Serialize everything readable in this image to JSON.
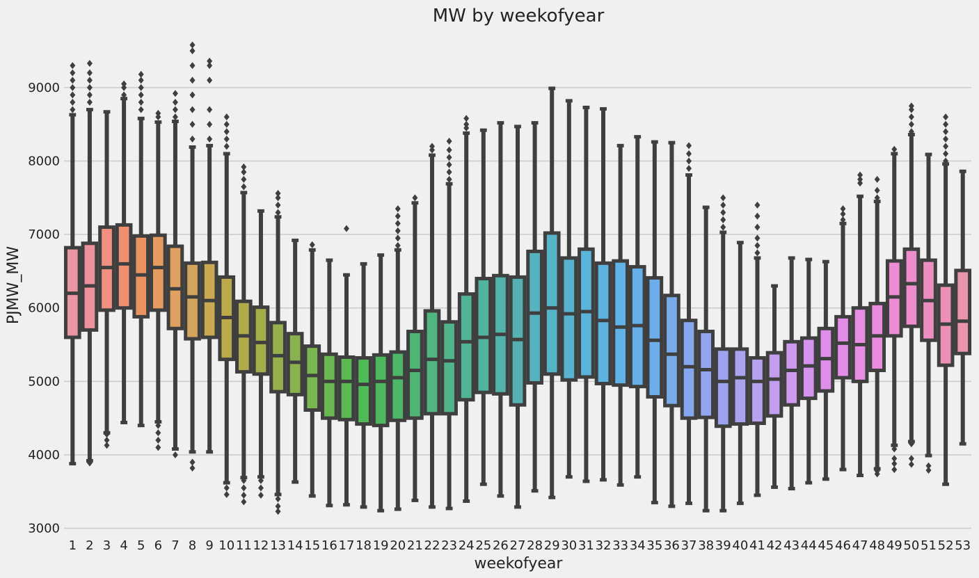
{
  "chart_data": {
    "type": "box",
    "title": "MW by weekofyear",
    "xlabel": "weekofyear",
    "ylabel": "PJMW_MW",
    "ylim": [
      2920,
      9700
    ],
    "yticks": [
      3000,
      4000,
      5000,
      6000,
      7000,
      8000,
      9000
    ],
    "grid": true,
    "categories": [
      "1",
      "2",
      "3",
      "4",
      "5",
      "6",
      "7",
      "8",
      "9",
      "10",
      "11",
      "12",
      "13",
      "14",
      "15",
      "16",
      "17",
      "18",
      "19",
      "20",
      "21",
      "22",
      "23",
      "24",
      "25",
      "26",
      "27",
      "28",
      "29",
      "30",
      "31",
      "32",
      "33",
      "34",
      "35",
      "36",
      "37",
      "38",
      "39",
      "40",
      "41",
      "42",
      "43",
      "44",
      "45",
      "46",
      "47",
      "48",
      "49",
      "50",
      "51",
      "52",
      "53"
    ],
    "colors": [
      "#ea96a3",
      "#ed929d",
      "#f09080",
      "#f08f72",
      "#ea9361",
      "#e59a5e",
      "#e0a05f",
      "#d3a55c",
      "#c9a951",
      "#bca94a",
      "#b0ab4b",
      "#a3ad4a",
      "#97b04d",
      "#89b24e",
      "#7cb64f",
      "#6ab84f",
      "#5ab950",
      "#4ebb56",
      "#4cb95f",
      "#4db769",
      "#4fb574",
      "#50b57f",
      "#52b48b",
      "#52b497",
      "#51b3a0",
      "#52b3aa",
      "#54b2b3",
      "#55b3be",
      "#57b3c7",
      "#58b3d0",
      "#5ab4d9",
      "#5db3e0",
      "#61b2e6",
      "#66b0e9",
      "#6dadeb",
      "#78aaec",
      "#85a7ee",
      "#92a5ef",
      "#9ea3ef",
      "#aca3ee",
      "#b8a1ee",
      "#c39eee",
      "#cd99ee",
      "#d494ed",
      "#dd8fe9",
      "#e28de6",
      "#e78de2",
      "#ea8cdc",
      "#ec8cd4",
      "#ed8dcb",
      "#ed8ec1",
      "#ec90b6",
      "#ea94ac"
    ],
    "boxes": [
      {
        "q1": 5600,
        "median": 6200,
        "q3": 6820,
        "whislo": 3880,
        "whishi": 8630,
        "outliers": [
          8700,
          8800,
          8900,
          9000,
          9100,
          9200,
          9300
        ]
      },
      {
        "q1": 5700,
        "median": 6300,
        "q3": 6880,
        "whislo": 3920,
        "whishi": 8700,
        "outliers": [
          3890,
          8800,
          8900,
          9000,
          9100,
          9200,
          9330
        ]
      },
      {
        "q1": 5970,
        "median": 6550,
        "q3": 7100,
        "whislo": 4300,
        "whishi": 8670,
        "outliers": [
          4130,
          4200,
          4280
        ]
      },
      {
        "q1": 6000,
        "median": 6600,
        "q3": 7130,
        "whislo": 4440,
        "whishi": 8850,
        "outliers": [
          8900,
          9000,
          9050
        ]
      },
      {
        "q1": 5880,
        "median": 6450,
        "q3": 6980,
        "whislo": 4400,
        "whishi": 8580,
        "outliers": [
          8700,
          8800,
          8900,
          9000,
          9100,
          9180
        ]
      },
      {
        "q1": 5970,
        "median": 6550,
        "q3": 6990,
        "whislo": 4450,
        "whishi": 8530,
        "outliers": [
          4100,
          4200,
          4300,
          4400,
          8600,
          8650
        ]
      },
      {
        "q1": 5720,
        "median": 6260,
        "q3": 6840,
        "whislo": 4080,
        "whishi": 8540,
        "outliers": [
          4000,
          8600,
          8700,
          8800,
          8920
        ]
      },
      {
        "q1": 5580,
        "median": 6150,
        "q3": 6610,
        "whislo": 4040,
        "whishi": 8190,
        "outliers": [
          3820,
          3900,
          8300,
          8500,
          8700,
          8900,
          9100,
          9300,
          9500,
          9580
        ]
      },
      {
        "q1": 5600,
        "median": 6100,
        "q3": 6620,
        "whislo": 4040,
        "whishi": 8210,
        "outliers": [
          8300,
          8500,
          8700,
          9100,
          9300,
          9360
        ]
      },
      {
        "q1": 5300,
        "median": 5870,
        "q3": 6420,
        "whislo": 3620,
        "whishi": 8100,
        "outliers": [
          3460,
          3550,
          8200,
          8300,
          8400,
          8500,
          8600
        ]
      },
      {
        "q1": 5130,
        "median": 5620,
        "q3": 6090,
        "whislo": 3690,
        "whishi": 7570,
        "outliers": [
          3360,
          3450,
          3550,
          3650,
          7650,
          7750,
          7850,
          7920
        ]
      },
      {
        "q1": 5100,
        "median": 5530,
        "q3": 6010,
        "whislo": 3700,
        "whishi": 7320,
        "outliers": [
          3450,
          3550,
          3650
        ]
      },
      {
        "q1": 4860,
        "median": 5350,
        "q3": 5800,
        "whislo": 3460,
        "whishi": 7240,
        "outliers": [
          3230,
          3300,
          3400,
          7300,
          7400,
          7500,
          7560
        ]
      },
      {
        "q1": 4820,
        "median": 5260,
        "q3": 5650,
        "whislo": 3630,
        "whishi": 6920,
        "outliers": []
      },
      {
        "q1": 4610,
        "median": 5080,
        "q3": 5480,
        "whislo": 3440,
        "whishi": 6790,
        "outliers": [
          6860
        ]
      },
      {
        "q1": 4500,
        "median": 5000,
        "q3": 5370,
        "whislo": 3310,
        "whishi": 6650,
        "outliers": []
      },
      {
        "q1": 4480,
        "median": 5000,
        "q3": 5330,
        "whislo": 3320,
        "whishi": 6450,
        "outliers": [
          7080
        ]
      },
      {
        "q1": 4420,
        "median": 4960,
        "q3": 5320,
        "whislo": 3290,
        "whishi": 6600,
        "outliers": []
      },
      {
        "q1": 4400,
        "median": 5000,
        "q3": 5360,
        "whislo": 3240,
        "whishi": 6720,
        "outliers": []
      },
      {
        "q1": 4470,
        "median": 5050,
        "q3": 5400,
        "whislo": 3260,
        "whishi": 6790,
        "outliers": [
          6850,
          6950,
          7050,
          7150,
          7250,
          7350
        ]
      },
      {
        "q1": 4500,
        "median": 5150,
        "q3": 5680,
        "whislo": 3380,
        "whishi": 7430,
        "outliers": [
          7500
        ]
      },
      {
        "q1": 4560,
        "median": 5300,
        "q3": 5960,
        "whislo": 3290,
        "whishi": 8080,
        "outliers": [
          8150,
          8200
        ]
      },
      {
        "q1": 4560,
        "median": 5280,
        "q3": 5810,
        "whislo": 3270,
        "whishi": 7690,
        "outliers": [
          7750,
          7850,
          7950,
          8050,
          8150,
          8270
        ]
      },
      {
        "q1": 4750,
        "median": 5540,
        "q3": 6190,
        "whislo": 3370,
        "whishi": 8380,
        "outliers": [
          8450,
          8500,
          8580
        ]
      },
      {
        "q1": 4850,
        "median": 5600,
        "q3": 6400,
        "whislo": 3600,
        "whishi": 8420,
        "outliers": []
      },
      {
        "q1": 4830,
        "median": 5640,
        "q3": 6440,
        "whislo": 3440,
        "whishi": 8520,
        "outliers": []
      },
      {
        "q1": 4680,
        "median": 5570,
        "q3": 6420,
        "whislo": 3290,
        "whishi": 8470,
        "outliers": []
      },
      {
        "q1": 4980,
        "median": 5930,
        "q3": 6770,
        "whislo": 3510,
        "whishi": 8520,
        "outliers": []
      },
      {
        "q1": 5100,
        "median": 6000,
        "q3": 7020,
        "whislo": 3420,
        "whishi": 8990,
        "outliers": []
      },
      {
        "q1": 5020,
        "median": 5920,
        "q3": 6680,
        "whislo": 3700,
        "whishi": 8820,
        "outliers": []
      },
      {
        "q1": 5060,
        "median": 5950,
        "q3": 6800,
        "whislo": 3640,
        "whishi": 8730,
        "outliers": []
      },
      {
        "q1": 4970,
        "median": 5830,
        "q3": 6610,
        "whislo": 3660,
        "whishi": 8710,
        "outliers": []
      },
      {
        "q1": 4950,
        "median": 5740,
        "q3": 6640,
        "whislo": 3590,
        "whishi": 8210,
        "outliers": []
      },
      {
        "q1": 4930,
        "median": 5760,
        "q3": 6560,
        "whislo": 3700,
        "whishi": 8330,
        "outliers": []
      },
      {
        "q1": 4790,
        "median": 5560,
        "q3": 6410,
        "whislo": 3350,
        "whishi": 8260,
        "outliers": []
      },
      {
        "q1": 4670,
        "median": 5370,
        "q3": 6170,
        "whislo": 3300,
        "whishi": 8250,
        "outliers": []
      },
      {
        "q1": 4500,
        "median": 5200,
        "q3": 5830,
        "whislo": 3340,
        "whishi": 7810,
        "outliers": [
          7900,
          8000,
          8100,
          8210
        ]
      },
      {
        "q1": 4510,
        "median": 5160,
        "q3": 5680,
        "whislo": 3240,
        "whishi": 7370,
        "outliers": []
      },
      {
        "q1": 4390,
        "median": 5000,
        "q3": 5440,
        "whislo": 3240,
        "whishi": 7030,
        "outliers": [
          7100,
          7200,
          7300,
          7400,
          7500
        ]
      },
      {
        "q1": 4420,
        "median": 5050,
        "q3": 5440,
        "whislo": 3340,
        "whishi": 6890,
        "outliers": []
      },
      {
        "q1": 4430,
        "median": 5000,
        "q3": 5320,
        "whislo": 3450,
        "whishi": 6680,
        "outliers": [
          6750,
          6850,
          6950,
          7100,
          7250,
          7400
        ]
      },
      {
        "q1": 4530,
        "median": 5030,
        "q3": 5390,
        "whislo": 3560,
        "whishi": 6300,
        "outliers": []
      },
      {
        "q1": 4680,
        "median": 5150,
        "q3": 5540,
        "whislo": 3540,
        "whishi": 6680,
        "outliers": []
      },
      {
        "q1": 4770,
        "median": 5210,
        "q3": 5590,
        "whislo": 3620,
        "whishi": 6660,
        "outliers": []
      },
      {
        "q1": 4870,
        "median": 5310,
        "q3": 5720,
        "whislo": 3670,
        "whishi": 6630,
        "outliers": []
      },
      {
        "q1": 5050,
        "median": 5520,
        "q3": 5880,
        "whislo": 3800,
        "whishi": 7150,
        "outliers": [
          7200,
          7280,
          7350
        ]
      },
      {
        "q1": 5000,
        "median": 5500,
        "q3": 6000,
        "whislo": 3720,
        "whishi": 7520,
        "outliers": [
          7700,
          7750,
          7810
        ]
      },
      {
        "q1": 5150,
        "median": 5620,
        "q3": 6060,
        "whislo": 3810,
        "whishi": 7450,
        "outliers": [
          3740,
          3780,
          7500,
          7600,
          7750
        ]
      },
      {
        "q1": 5620,
        "median": 6150,
        "q3": 6640,
        "whislo": 4130,
        "whishi": 8100,
        "outliers": [
          3800,
          3880,
          3950,
          4080,
          8160
        ]
      },
      {
        "q1": 5750,
        "median": 6330,
        "q3": 6800,
        "whislo": 4180,
        "whishi": 8360,
        "outliers": [
          3870,
          3950,
          4150,
          8400,
          8500,
          8600,
          8700,
          8750
        ]
      },
      {
        "q1": 5560,
        "median": 6100,
        "q3": 6650,
        "whislo": 3990,
        "whishi": 8090,
        "outliers": [
          3790,
          3850
        ]
      },
      {
        "q1": 5220,
        "median": 5780,
        "q3": 6310,
        "whislo": 3600,
        "whishi": 7960,
        "outliers": [
          8000,
          8100,
          8200,
          8300,
          8400,
          8500,
          8600
        ]
      },
      {
        "q1": 5380,
        "median": 5820,
        "q3": 6510,
        "whislo": 4150,
        "whishi": 7860,
        "outliers": []
      }
    ]
  }
}
